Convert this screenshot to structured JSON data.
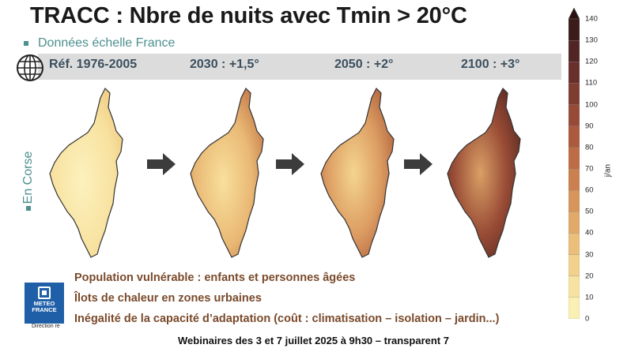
{
  "title": "TRACC : Nbre de nuits avec Tmin > 20°C",
  "subtitle": "Données échelle France",
  "side_label": "En Corse",
  "periods": [
    "Réf. 1976-2005",
    "2030 : +1,5°",
    "2050 : +2°",
    "2100 : +3°"
  ],
  "impacts": [
    "Population vulnérable : enfants et personnes âgées",
    "Îlots de chaleur en zones urbaines",
    "Inégalité de la capacité d’adaptation (coût : climatisation – isolation – jardin...)"
  ],
  "logo": {
    "line1": "METEO",
    "line2": "FRANCE",
    "caption": "Direction re"
  },
  "footer": "Webinaires des 3 et 7 juillet 2025 à 9h30  – transparent 7",
  "legend": {
    "unit": "j/an",
    "ticks": [
      "0",
      "10",
      "20",
      "30",
      "40",
      "50",
      "60",
      "70",
      "80",
      "90",
      "100",
      "110",
      "120",
      "130",
      "140"
    ],
    "colors": [
      "#fbf0b4",
      "#f7e3a1",
      "#f2d18c",
      "#ebbf79",
      "#e2aa69",
      "#d8955b",
      "#cc804f",
      "#bd6c45",
      "#ab5a3d",
      "#974a37",
      "#7f3c31",
      "#682f2b",
      "#512523",
      "#3c1b1b",
      "#2a1212"
    ]
  },
  "maps": [
    {
      "period": "Réf. 1976-2005",
      "fill": [
        "#fcf1bd",
        "#f8e2a0",
        "#f0cc84"
      ]
    },
    {
      "period": "2030 : +1,5°",
      "fill": [
        "#f8e09c",
        "#e9b874",
        "#c77c4c"
      ]
    },
    {
      "period": "2050 : +2°",
      "fill": [
        "#f4d58e",
        "#dd9e63",
        "#b0613d"
      ]
    },
    {
      "period": "2100 : +3°",
      "fill": [
        "#d9a066",
        "#9a4d36",
        "#5a2822"
      ]
    }
  ]
}
